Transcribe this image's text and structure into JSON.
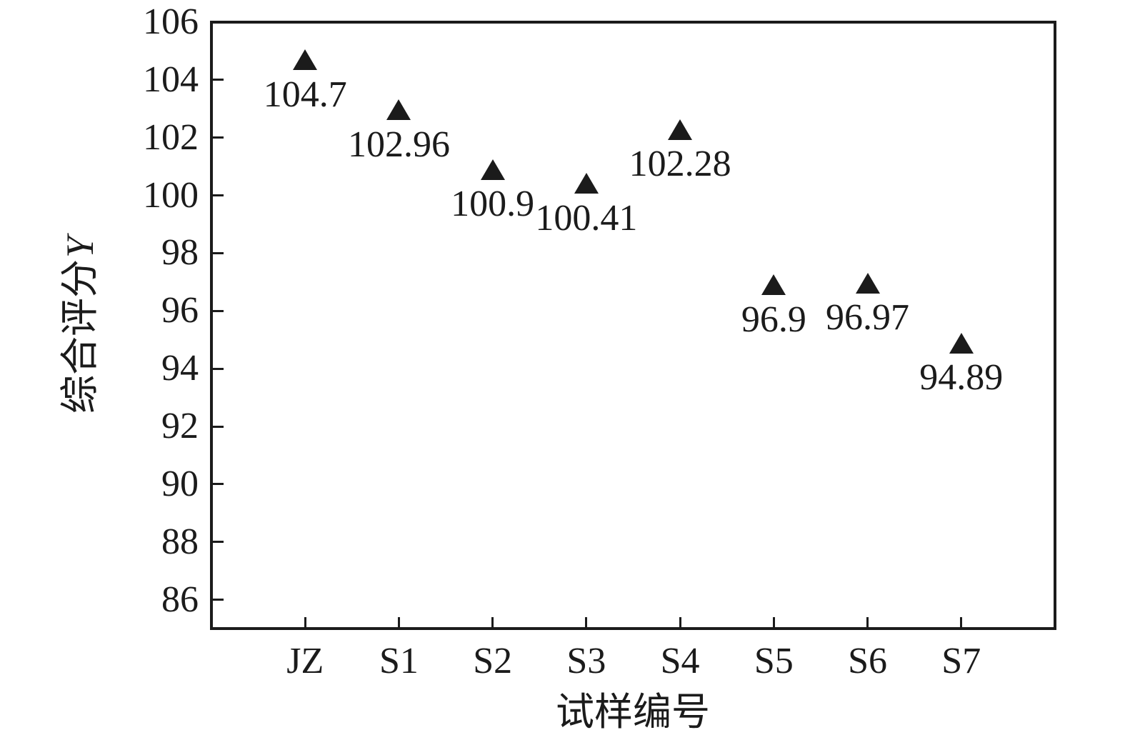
{
  "figure": {
    "background_color": "#ffffff",
    "foreground_color": "#1b1b1b"
  },
  "chart_data": {
    "type": "scatter",
    "marker": "triangle-up",
    "marker_color": "#1b1b1b",
    "xlabel": "试样编号",
    "ylabel": "综合评分Y",
    "ylabel_parts": {
      "prefix": "综合评分",
      "variable": "Y"
    },
    "categories": [
      "JZ",
      "S1",
      "S2",
      "S3",
      "S4",
      "S5",
      "S6",
      "S7"
    ],
    "values": [
      104.7,
      102.96,
      100.9,
      100.41,
      102.28,
      96.9,
      96.97,
      94.89
    ],
    "point_labels": [
      "104.7",
      "102.96",
      "100.9",
      "100.41",
      "102.28",
      "96.9",
      "96.97",
      "94.89"
    ],
    "ylim": [
      85,
      106
    ],
    "yticks": [
      86,
      88,
      90,
      92,
      94,
      96,
      98,
      100,
      102,
      104,
      106
    ],
    "grid": false,
    "legend": "none"
  }
}
